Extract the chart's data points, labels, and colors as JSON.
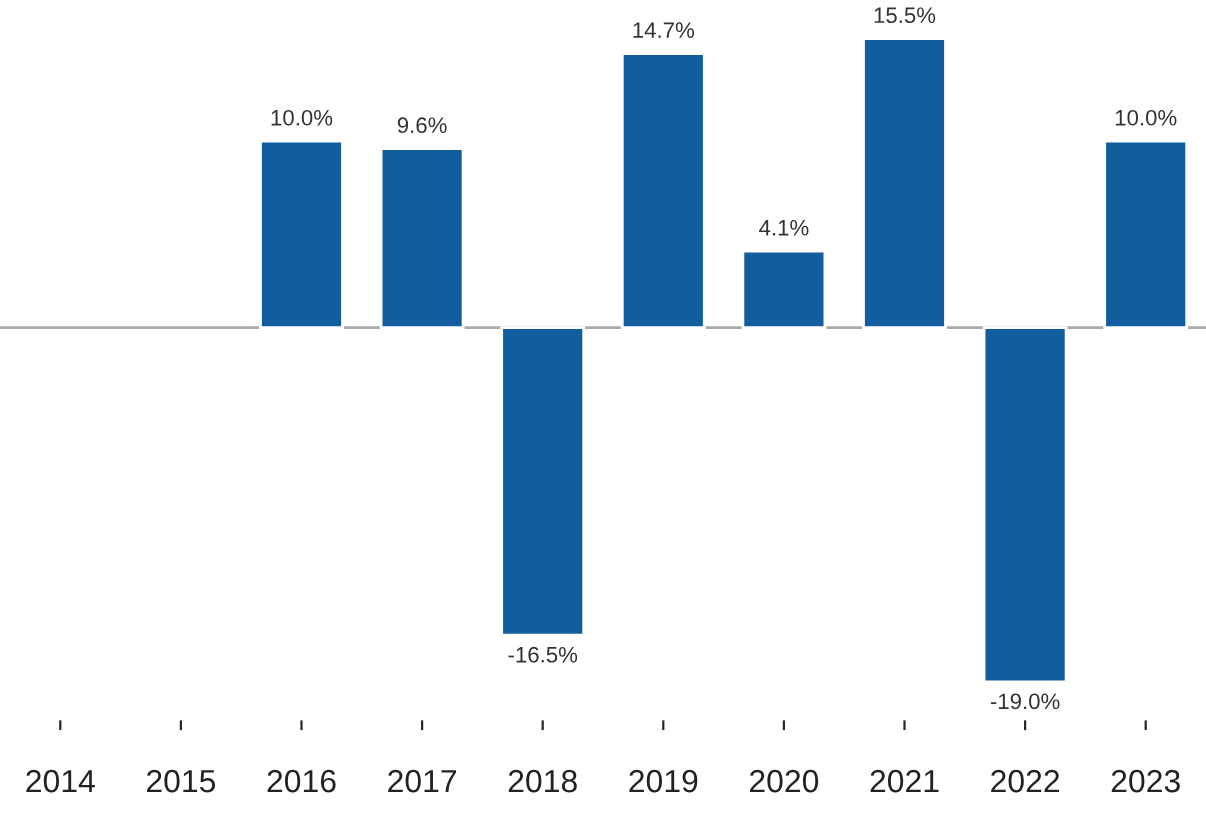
{
  "chart_data": {
    "type": "bar",
    "categories": [
      "2014",
      "2015",
      "2016",
      "2017",
      "2018",
      "2019",
      "2020",
      "2021",
      "2022",
      "2023"
    ],
    "values": [
      null,
      null,
      10.0,
      9.6,
      -16.5,
      14.7,
      4.1,
      15.5,
      -19.0,
      10.0
    ],
    "value_labels": [
      null,
      null,
      "10.0%",
      "9.6%",
      "-16.5%",
      "14.7%",
      "4.1%",
      "15.5%",
      "-19.0%",
      "10.0%"
    ],
    "color": "#115d9e",
    "grid": false,
    "legend": false
  }
}
